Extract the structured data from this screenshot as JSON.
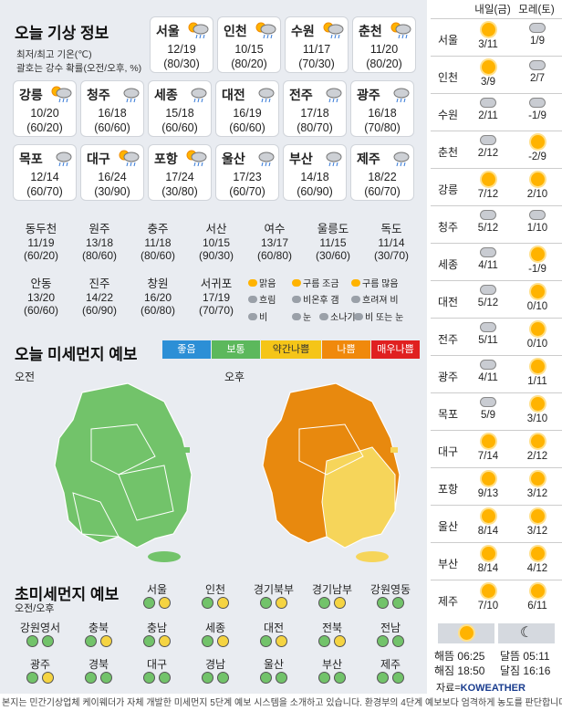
{
  "header": {
    "title": "오늘 기상 정보",
    "note1": "최저/최고 기온(℃)",
    "note2": "괄호는 강수 확률(오전/오후, %)"
  },
  "city_cards": [
    {
      "name": "서울",
      "temp": "12/19",
      "prob": "(80/30)",
      "icon": "sun-cloud-rain-icon"
    },
    {
      "name": "인천",
      "temp": "10/15",
      "prob": "(80/20)",
      "icon": "rain-then-clear-icon"
    },
    {
      "name": "수원",
      "temp": "11/17",
      "prob": "(70/30)",
      "icon": "rain-then-clear-icon"
    },
    {
      "name": "춘천",
      "temp": "11/20",
      "prob": "(80/20)",
      "icon": "rain-then-clear-icon"
    },
    {
      "name": "강릉",
      "temp": "10/20",
      "prob": "(60/20)",
      "icon": "sun-cloud-rain-icon"
    },
    {
      "name": "청주",
      "temp": "16/18",
      "prob": "(60/60)",
      "icon": "rain-icon"
    },
    {
      "name": "세종",
      "temp": "15/18",
      "prob": "(60/60)",
      "icon": "rain-icon"
    },
    {
      "name": "대전",
      "temp": "16/19",
      "prob": "(60/60)",
      "icon": "rain-icon"
    },
    {
      "name": "전주",
      "temp": "17/18",
      "prob": "(80/70)",
      "icon": "rain-icon"
    },
    {
      "name": "광주",
      "temp": "16/18",
      "prob": "(70/80)",
      "icon": "rain-icon"
    },
    {
      "name": "목포",
      "temp": "12/14",
      "prob": "(60/70)",
      "icon": "rain-icon"
    },
    {
      "name": "대구",
      "temp": "16/24",
      "prob": "(30/90)",
      "icon": "sun-cloud-rain-icon"
    },
    {
      "name": "포항",
      "temp": "17/24",
      "prob": "(30/80)",
      "icon": "sun-cloud-rain-icon"
    },
    {
      "name": "울산",
      "temp": "17/23",
      "prob": "(60/70)",
      "icon": "rain-icon"
    },
    {
      "name": "부산",
      "temp": "14/18",
      "prob": "(60/90)",
      "icon": "rain-icon"
    },
    {
      "name": "제주",
      "temp": "18/22",
      "prob": "(60/70)",
      "icon": "rain-icon"
    }
  ],
  "city_table_row1": [
    {
      "name": "동두천",
      "temp": "11/19",
      "prob": "(60/20)"
    },
    {
      "name": "원주",
      "temp": "13/18",
      "prob": "(80/60)"
    },
    {
      "name": "충주",
      "temp": "11/18",
      "prob": "(80/60)"
    },
    {
      "name": "서산",
      "temp": "10/15",
      "prob": "(90/30)"
    },
    {
      "name": "여수",
      "temp": "13/17",
      "prob": "(60/80)"
    },
    {
      "name": "울릉도",
      "temp": "11/15",
      "prob": "(30/60)"
    },
    {
      "name": "독도",
      "temp": "11/14",
      "prob": "(30/70)"
    }
  ],
  "city_table_row2": [
    {
      "name": "안동",
      "temp": "13/20",
      "prob": "(60/60)"
    },
    {
      "name": "진주",
      "temp": "14/22",
      "prob": "(60/90)"
    },
    {
      "name": "창원",
      "temp": "16/20",
      "prob": "(60/80)"
    },
    {
      "name": "서귀포",
      "temp": "17/19",
      "prob": "(70/70)"
    }
  ],
  "weather_legend": [
    "맑음",
    "구름 조금",
    "구름 많음",
    "흐림",
    "비온후 갬",
    "흐려져 비",
    "비",
    "눈",
    "소나기",
    "비 또는 눈"
  ],
  "pm_section": {
    "title": "오늘 미세먼지 예보",
    "am": "오전",
    "pm": "오후"
  },
  "pm_levels": [
    {
      "label": "좋음",
      "color": "#2c8fd6"
    },
    {
      "label": "보통",
      "color": "#5cb85c"
    },
    {
      "label": "약간나쁨",
      "color": "#f5c518"
    },
    {
      "label": "나쁨",
      "color": "#f0890c"
    },
    {
      "label": "매우나쁨",
      "color": "#e02020"
    }
  ],
  "fine_dust": {
    "title": "초미세먼지 예보",
    "sub": "오전/오후",
    "row1": [
      {
        "name": "서울",
        "am": "g",
        "pm": "y"
      },
      {
        "name": "인천",
        "am": "g",
        "pm": "y"
      },
      {
        "name": "경기북부",
        "am": "g",
        "pm": "y"
      },
      {
        "name": "경기남부",
        "am": "g",
        "pm": "y"
      },
      {
        "name": "강원영동",
        "am": "g",
        "pm": "g"
      }
    ],
    "row2": [
      {
        "name": "강원영서",
        "am": "g",
        "pm": "g"
      },
      {
        "name": "충북",
        "am": "g",
        "pm": "y"
      },
      {
        "name": "충남",
        "am": "g",
        "pm": "y"
      },
      {
        "name": "세종",
        "am": "g",
        "pm": "y"
      },
      {
        "name": "대전",
        "am": "g",
        "pm": "y"
      },
      {
        "name": "전북",
        "am": "g",
        "pm": "y"
      },
      {
        "name": "전남",
        "am": "g",
        "pm": "g"
      }
    ],
    "row3": [
      {
        "name": "광주",
        "am": "g",
        "pm": "y"
      },
      {
        "name": "경북",
        "am": "g",
        "pm": "g"
      },
      {
        "name": "대구",
        "am": "g",
        "pm": "g"
      },
      {
        "name": "경남",
        "am": "g",
        "pm": "g"
      },
      {
        "name": "울산",
        "am": "g",
        "pm": "g"
      },
      {
        "name": "부산",
        "am": "g",
        "pm": "g"
      },
      {
        "name": "제주",
        "am": "g",
        "pm": "g"
      }
    ]
  },
  "forecast": {
    "col1": "내일(금)",
    "col2": "모레(토)",
    "rows": [
      {
        "city": "서울",
        "d1": "3/11",
        "i1": "sun",
        "d2": "1/9",
        "i2": "cloud"
      },
      {
        "city": "인천",
        "d1": "3/9",
        "i1": "sun",
        "d2": "2/7",
        "i2": "cloud"
      },
      {
        "city": "수원",
        "d1": "2/11",
        "i1": "cloud",
        "d2": "-1/9",
        "i2": "cloud"
      },
      {
        "city": "춘천",
        "d1": "2/12",
        "i1": "cloud",
        "d2": "-2/9",
        "i2": "sun"
      },
      {
        "city": "강릉",
        "d1": "7/12",
        "i1": "sun",
        "d2": "2/10",
        "i2": "sun"
      },
      {
        "city": "청주",
        "d1": "5/12",
        "i1": "cloud",
        "d2": "1/10",
        "i2": "cloud"
      },
      {
        "city": "세종",
        "d1": "4/11",
        "i1": "cloud",
        "d2": "-1/9",
        "i2": "sun"
      },
      {
        "city": "대전",
        "d1": "5/12",
        "i1": "cloud",
        "d2": "0/10",
        "i2": "sun"
      },
      {
        "city": "전주",
        "d1": "5/11",
        "i1": "cloud",
        "d2": "0/10",
        "i2": "sun"
      },
      {
        "city": "광주",
        "d1": "4/11",
        "i1": "cloud",
        "d2": "1/11",
        "i2": "sun"
      },
      {
        "city": "목포",
        "d1": "5/9",
        "i1": "cloud",
        "d2": "3/10",
        "i2": "sun"
      },
      {
        "city": "대구",
        "d1": "7/14",
        "i1": "sun",
        "d2": "2/12",
        "i2": "sun"
      },
      {
        "city": "포항",
        "d1": "9/13",
        "i1": "sun",
        "d2": "3/12",
        "i2": "sun"
      },
      {
        "city": "울산",
        "d1": "8/14",
        "i1": "sun",
        "d2": "3/12",
        "i2": "sun"
      },
      {
        "city": "부산",
        "d1": "8/14",
        "i1": "sun",
        "d2": "4/12",
        "i2": "sun"
      },
      {
        "city": "제주",
        "d1": "7/10",
        "i1": "sun",
        "d2": "6/11",
        "i2": "sun"
      }
    ]
  },
  "sun_moon": {
    "sunrise": "해뜸 06:25",
    "sunset": "해짐 18:50",
    "moonrise": "달뜸 05:11",
    "moonset": "달짐 16:16"
  },
  "source": "자료=",
  "brand": "KOWEATHER",
  "footer": "본지는 민간기상업체 케이웨더가 자체 개발한 미세먼지 5단계 예보 시스템을 소개하고 있습니다. 환경부의 4단계 예보보다 엄격하게 농도를 판단합니다"
}
